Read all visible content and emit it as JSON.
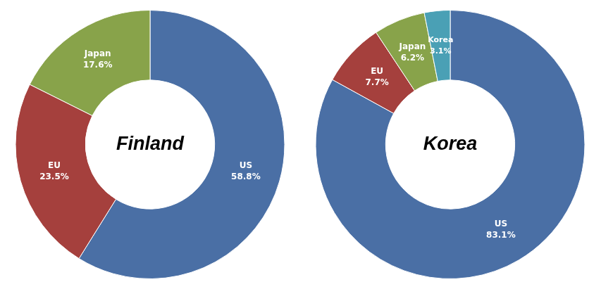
{
  "chart_data": [
    {
      "type": "doughnut",
      "title": "Finland",
      "categories": [
        "US",
        "EU",
        "Japan"
      ],
      "values": [
        58.8,
        23.5,
        17.6
      ],
      "value_labels": [
        "58.8%",
        "23.5%",
        "17.6%"
      ],
      "colors": [
        "#4a6fa5",
        "#a5403d",
        "#88a34a"
      ],
      "data_labels": true
    },
    {
      "type": "doughnut",
      "title": "Korea",
      "categories": [
        "US",
        "EU",
        "Japan",
        "Korea"
      ],
      "values": [
        83.1,
        7.7,
        6.2,
        3.1
      ],
      "value_labels": [
        "83.1%",
        "7.7%",
        "6.2%",
        "3.1%"
      ],
      "colors": [
        "#4a6fa5",
        "#a5403d",
        "#88a34a",
        "#4aa0b5"
      ],
      "data_labels": true
    }
  ]
}
